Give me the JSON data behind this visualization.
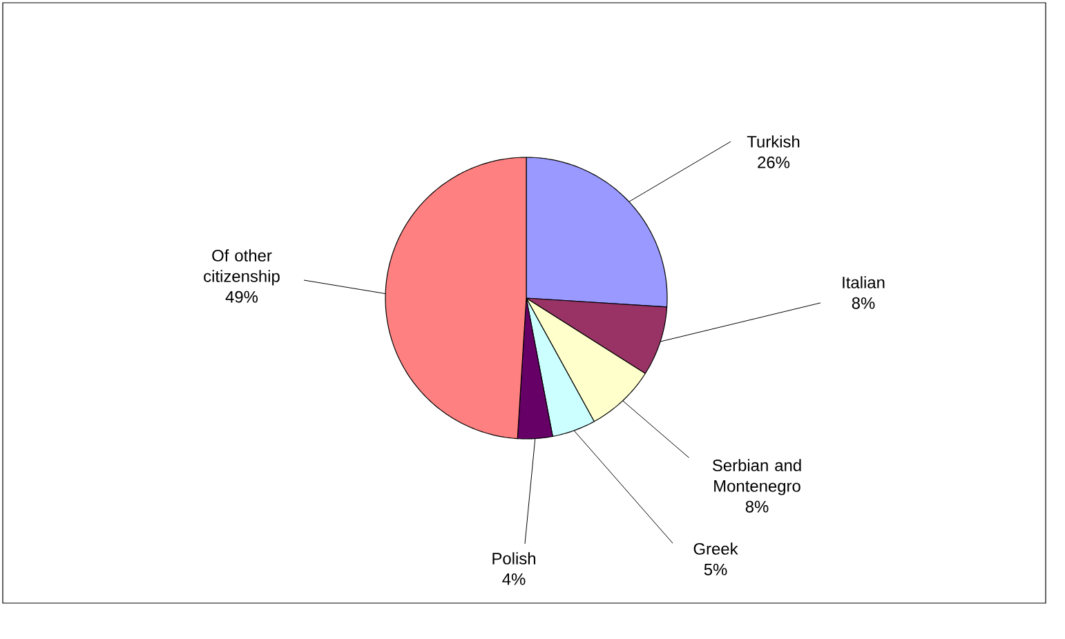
{
  "chart_data": {
    "type": "pie",
    "categories": [
      "Turkish",
      "Italian",
      "Serbian and Montenegro",
      "Greek",
      "Polish",
      "Of other citizenship"
    ],
    "values": [
      26,
      8,
      8,
      5,
      4,
      49
    ],
    "colors": [
      "#9999ff",
      "#993366",
      "#ffffcc",
      "#ccffff",
      "#660066",
      "#ff8080"
    ],
    "value_labels": [
      "26%",
      "8%",
      "8%",
      "5%",
      "4%",
      "49%"
    ]
  }
}
